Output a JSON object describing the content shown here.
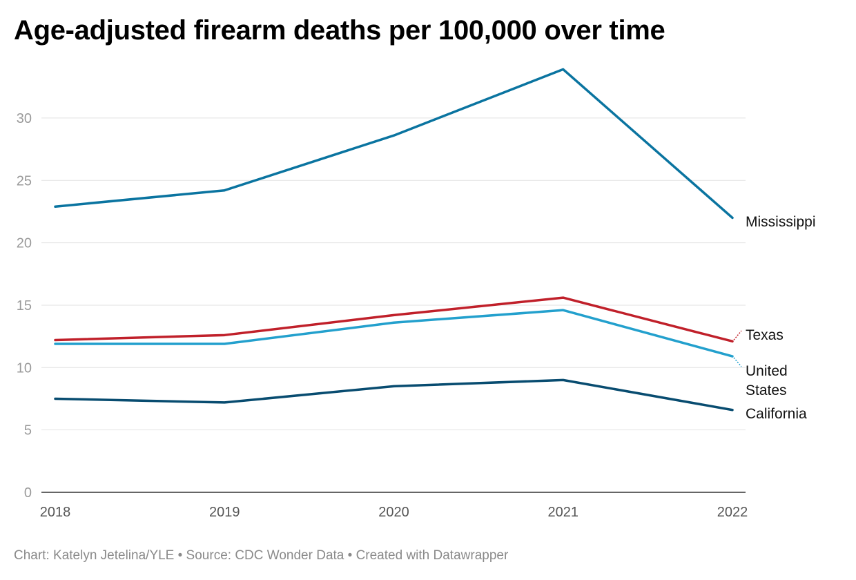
{
  "header": {
    "title": "Age-adjusted firearm deaths per 100,000 over time"
  },
  "footer": {
    "text": "Chart: Katelyn Jetelina/YLE • Source: CDC Wonder Data • Created with Datawrapper"
  },
  "chart_data": {
    "type": "line",
    "title": "Age-adjusted firearm deaths per 100,000 over time",
    "x": [
      "2018",
      "2019",
      "2020",
      "2021",
      "2022"
    ],
    "ylim": [
      0,
      35
    ],
    "yticks": [
      0,
      5,
      10,
      15,
      20,
      25,
      30
    ],
    "grid": true,
    "series": [
      {
        "name": "Mississippi",
        "color": "#0a74a0",
        "values": [
          22.9,
          24.2,
          28.6,
          33.9,
          22.0
        ]
      },
      {
        "name": "Texas",
        "color": "#c0202a",
        "values": [
          12.2,
          12.6,
          14.2,
          15.6,
          12.1
        ]
      },
      {
        "name": "United States",
        "label_lines": [
          "United",
          "States"
        ],
        "color": "#23a0cd",
        "values": [
          11.9,
          11.9,
          13.6,
          14.6,
          10.9
        ]
      },
      {
        "name": "California",
        "color": "#084c70",
        "values": [
          7.5,
          7.2,
          8.5,
          9.0,
          6.6
        ]
      }
    ]
  }
}
